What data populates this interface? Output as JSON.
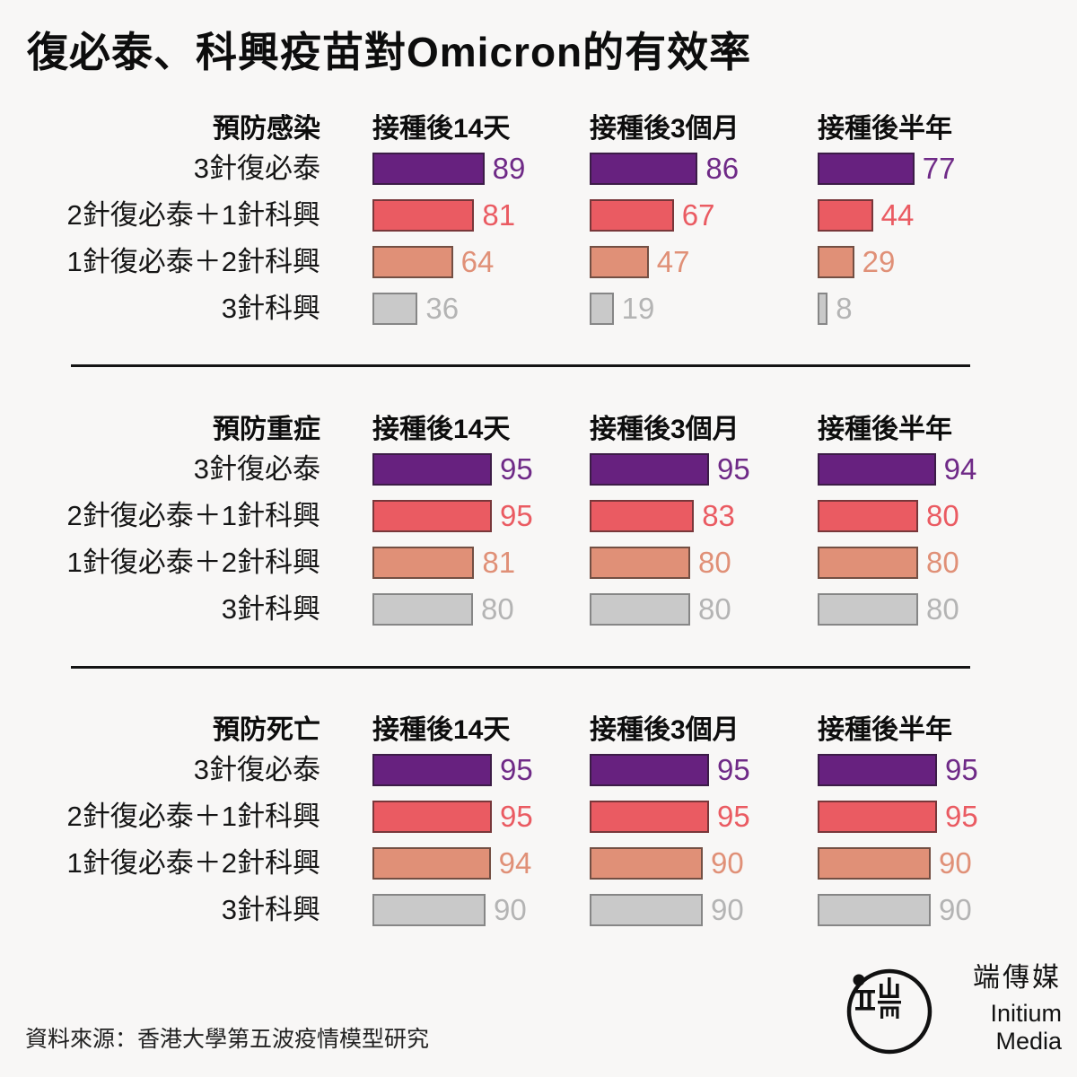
{
  "background": "#f8f7f6",
  "title": "復必泰、科興疫苗對Omicron的有效率",
  "source": "資料來源：香港大學第五波疫情模型研究",
  "brand": {
    "zh": "端傳媒",
    "en": "Initium Media"
  },
  "chart_data": {
    "type": "bar",
    "orientation": "horizontal",
    "title": "復必泰、科興疫苗對Omicron的有效率",
    "value_range": [
      0,
      100
    ],
    "grid": false,
    "legend": "none",
    "columns": [
      "接種後14天",
      "接種後3個月",
      "接種後半年"
    ],
    "series": [
      {
        "label": "3針復必泰",
        "color": "#67217f",
        "value_color": "#6f2a87"
      },
      {
        "label": "2針復必泰＋1針科興",
        "color": "#ea5b62",
        "value_color": "#ea5b62"
      },
      {
        "label": "1針復必泰＋2針科興",
        "color": "#e09077",
        "value_color": "#e09077"
      },
      {
        "label": "3針科興",
        "color": "#c9c9c9",
        "value_color": "#b4b4b4"
      }
    ],
    "sections": [
      {
        "title": "預防感染",
        "values": [
          [
            89,
            86,
            77
          ],
          [
            81,
            67,
            44
          ],
          [
            64,
            47,
            29
          ],
          [
            36,
            19,
            8
          ]
        ]
      },
      {
        "title": "預防重症",
        "values": [
          [
            95,
            95,
            94
          ],
          [
            95,
            83,
            80
          ],
          [
            81,
            80,
            80
          ],
          [
            80,
            80,
            80
          ]
        ]
      },
      {
        "title": "預防死亡",
        "values": [
          [
            95,
            95,
            95
          ],
          [
            95,
            95,
            95
          ],
          [
            94,
            90,
            90
          ],
          [
            90,
            90,
            90
          ]
        ]
      }
    ]
  }
}
